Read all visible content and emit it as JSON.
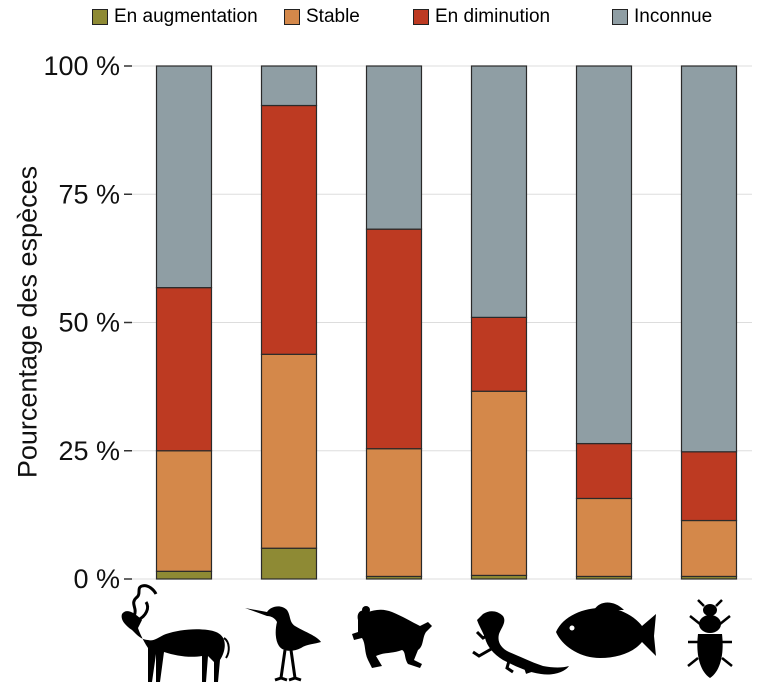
{
  "chart_data": {
    "type": "bar",
    "stacked": true,
    "ylabel": "Pourcentage des espèces",
    "ylim": [
      0,
      100
    ],
    "yticks": [
      0,
      25,
      50,
      75,
      100
    ],
    "ytick_labels": [
      "0 %",
      "25 %",
      "50 %",
      "75 %",
      "100 %"
    ],
    "grid": "horizontal",
    "legend_position": "top",
    "categories": [
      "mammal-silhouette",
      "bird-silhouette",
      "frog-silhouette",
      "lizard-silhouette",
      "fish-silhouette",
      "beetle-silhouette"
    ],
    "series": [
      {
        "name": "En augmentation",
        "color": "#8e8a34",
        "values": [
          1.5,
          6.0,
          0.5,
          0.7,
          0.5,
          0.5
        ]
      },
      {
        "name": "Stable",
        "color": "#d4884a",
        "values": [
          23.5,
          37.8,
          24.9,
          35.9,
          15.2,
          10.9
        ]
      },
      {
        "name": "En diminution",
        "color": "#bd3a22",
        "values": [
          31.8,
          48.5,
          42.8,
          14.4,
          10.7,
          13.4
        ]
      },
      {
        "name": "Inconnue",
        "color": "#8f9ea4",
        "values": [
          43.2,
          7.7,
          31.8,
          49.0,
          73.6,
          75.2
        ]
      }
    ]
  }
}
